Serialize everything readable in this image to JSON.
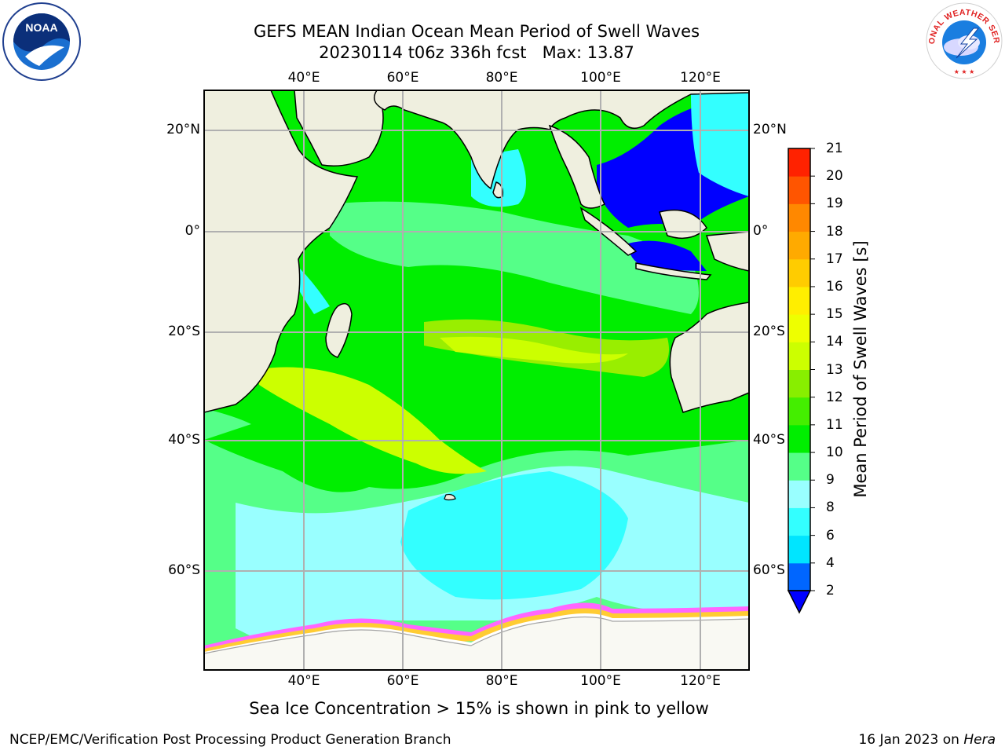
{
  "header": {
    "title_line1": "GEFS MEAN Indian Ocean Mean Period of Swell Waves",
    "title_line2": "20230114 t06z 336h fcst   Max: 13.87"
  },
  "map": {
    "lon_labels": [
      "40°E",
      "60°E",
      "80°E",
      "100°E",
      "120°E"
    ],
    "lat_labels": [
      "20°N",
      "0°",
      "20°S",
      "40°S",
      "60°S"
    ],
    "lon_range": [
      20,
      130
    ],
    "lat_range": [
      -73,
      27
    ],
    "land_color": "#efefdf",
    "ice_colors": [
      "#ff66ff",
      "#ffcc33",
      "#ffffff"
    ]
  },
  "colorbar": {
    "title": "Mean Period of Swell Waves [s]",
    "tick_labels": [
      "2",
      "4",
      "6",
      "8",
      "9",
      "10",
      "11",
      "12",
      "13",
      "14",
      "15",
      "16",
      "17",
      "18",
      "19",
      "20",
      "21"
    ],
    "colors": [
      "#0066ff",
      "#00e5ff",
      "#33ffff",
      "#99ffff",
      "#55ff88",
      "#00ee00",
      "#44ee00",
      "#88ee00",
      "#ccff00",
      "#eeff00",
      "#ffee00",
      "#ffcc00",
      "#ffaa00",
      "#ff8800",
      "#ff5500",
      "#ff2200"
    ],
    "extend_color": "#0000ff"
  },
  "footer": {
    "note": "Sea Ice Concentration > 15% is shown in pink to yellow",
    "credit": "NCEP/EMC/Verification Post Processing Product Generation Branch",
    "date_text": "16 Jan 2023 on",
    "machine": "Hera"
  },
  "logos": {
    "noaa_text": "NOAA",
    "nws_text": "NATIONAL WEATHER SERVICE"
  }
}
